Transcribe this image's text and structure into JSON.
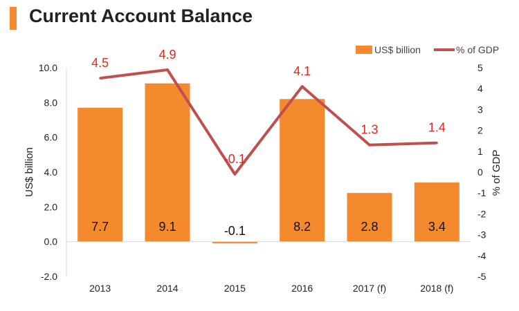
{
  "colors": {
    "bar": "#f5892e",
    "line": "#c0504d",
    "line_label": "#e8251c",
    "title_accent": "#f5892e"
  },
  "chart_data": {
    "type": "bar+line",
    "title": "Current Account Balance",
    "categories": [
      "2013",
      "2014",
      "2015",
      "2016",
      "2017 (f)",
      "2018 (f)"
    ],
    "series": [
      {
        "name": "US$ billion",
        "type": "bar",
        "axis": "left",
        "values": [
          7.7,
          9.1,
          -0.1,
          8.2,
          2.8,
          3.4
        ],
        "labels": [
          "7.7",
          "9.1",
          "-0.1",
          "8.2",
          "2.8",
          "3.4"
        ]
      },
      {
        "name": "% of GDP",
        "type": "line",
        "axis": "right",
        "values": [
          4.5,
          4.9,
          -0.1,
          4.1,
          1.3,
          1.4
        ],
        "labels": [
          "4.5",
          "4.9",
          "-0.1",
          "4.1",
          "1.3",
          "1.4"
        ]
      }
    ],
    "ylabel": "US$ billion",
    "y2label": "% of GDP",
    "ylim": [
      -2,
      10
    ],
    "y2lim": [
      -5,
      5
    ],
    "yticks": [
      "-2.0",
      "0.0",
      "2.0",
      "4.0",
      "6.0",
      "8.0",
      "10.0"
    ],
    "y2ticks": [
      "-5",
      "-4",
      "-3",
      "-2",
      "-1",
      "0",
      "1",
      "2",
      "3",
      "4",
      "5"
    ],
    "legend_position": "top-right"
  }
}
